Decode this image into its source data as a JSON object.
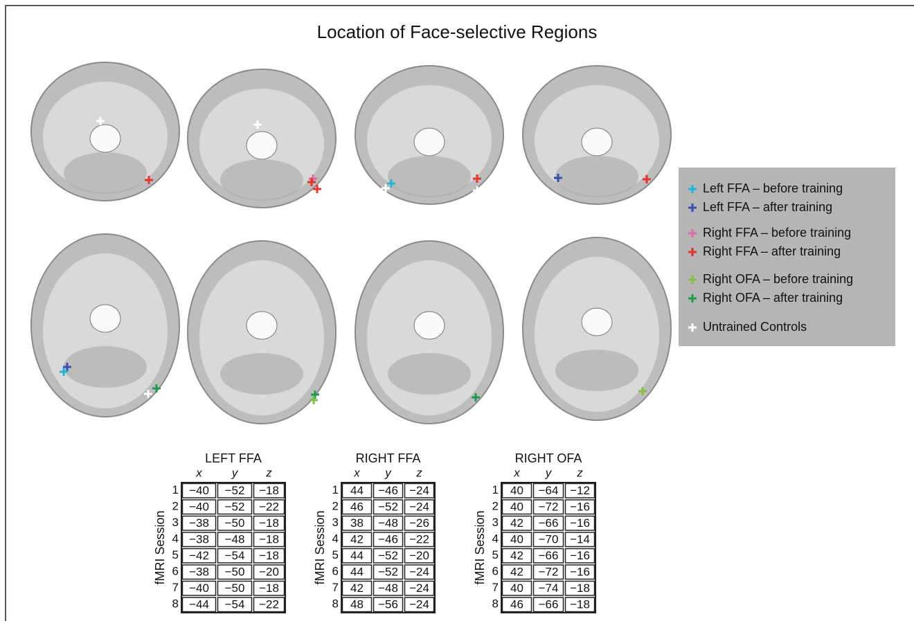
{
  "title": "Location of Face-selective Regions",
  "legend": {
    "items": [
      {
        "label": "Left FFA – before training",
        "color": "#1fb5d6"
      },
      {
        "label": "Left FFA – after training",
        "color": "#3a50b0"
      },
      {
        "label": "Right FFA – before training",
        "color": "#e06aae"
      },
      {
        "label": "Right FFA – after training",
        "color": "#e8322c"
      },
      {
        "label": "Right OFA – before training",
        "color": "#7dc242"
      },
      {
        "label": "Right OFA – after training",
        "color": "#1f9a4c"
      },
      {
        "label": "Untrained Controls",
        "color": "#ffffff"
      }
    ]
  },
  "row_label": "fMRI Session",
  "tables": [
    {
      "title": "LEFT FFA",
      "columns": [
        "x",
        "y",
        "z"
      ],
      "rows": [
        {
          "session": "1",
          "values": [
            "−40",
            "−52",
            "−18"
          ]
        },
        {
          "session": "2",
          "values": [
            "−40",
            "−52",
            "−22"
          ]
        },
        {
          "session": "3",
          "values": [
            "−38",
            "−50",
            "−18"
          ]
        },
        {
          "session": "4",
          "values": [
            "−38",
            "−48",
            "−18"
          ]
        },
        {
          "session": "5",
          "values": [
            "−42",
            "−54",
            "−18"
          ]
        },
        {
          "session": "6",
          "values": [
            "−38",
            "−50",
            "−20"
          ]
        },
        {
          "session": "7",
          "values": [
            "−40",
            "−50",
            "−18"
          ]
        },
        {
          "session": "8",
          "values": [
            "−44",
            "−54",
            "−22"
          ]
        }
      ]
    },
    {
      "title": "RIGHT FFA",
      "columns": [
        "x",
        "y",
        "z"
      ],
      "rows": [
        {
          "session": "1",
          "values": [
            "44",
            "−46",
            "−24"
          ]
        },
        {
          "session": "2",
          "values": [
            "46",
            "−52",
            "−24"
          ]
        },
        {
          "session": "3",
          "values": [
            "38",
            "−48",
            "−26"
          ]
        },
        {
          "session": "4",
          "values": [
            "42",
            "−46",
            "−22"
          ]
        },
        {
          "session": "5",
          "values": [
            "44",
            "−52",
            "−20"
          ]
        },
        {
          "session": "6",
          "values": [
            "44",
            "−52",
            "−24"
          ]
        },
        {
          "session": "7",
          "values": [
            "42",
            "−48",
            "−24"
          ]
        },
        {
          "session": "8",
          "values": [
            "48",
            "−56",
            "−24"
          ]
        }
      ]
    },
    {
      "title": "RIGHT OFA",
      "columns": [
        "x",
        "y",
        "z"
      ],
      "rows": [
        {
          "session": "1",
          "values": [
            "40",
            "−64",
            "−12"
          ]
        },
        {
          "session": "2",
          "values": [
            "40",
            "−72",
            "−16"
          ]
        },
        {
          "session": "3",
          "values": [
            "42",
            "−66",
            "−16"
          ]
        },
        {
          "session": "4",
          "values": [
            "40",
            "−70",
            "−14"
          ]
        },
        {
          "session": "5",
          "values": [
            "42",
            "−66",
            "−16"
          ]
        },
        {
          "session": "6",
          "values": [
            "42",
            "−72",
            "−16"
          ]
        },
        {
          "session": "7",
          "values": [
            "40",
            "−74",
            "−18"
          ]
        },
        {
          "session": "8",
          "values": [
            "46",
            "−66",
            "−18"
          ]
        }
      ]
    }
  ]
}
